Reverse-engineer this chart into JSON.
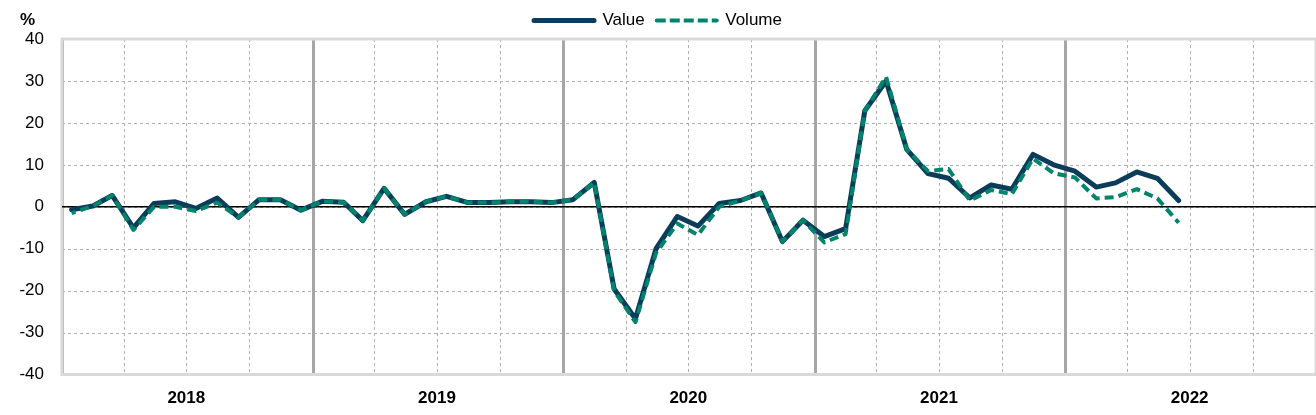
{
  "chart_data": {
    "type": "line",
    "ylabel": "%",
    "x": [
      "2018-01-15",
      "2018-02-15",
      "2018-03-15",
      "2018-04-15",
      "2018-05-15",
      "2018-06-15",
      "2018-07-15",
      "2018-08-15",
      "2018-09-15",
      "2018-10-15",
      "2018-11-15",
      "2018-12-15",
      "2019-01-15",
      "2019-02-15",
      "2019-03-15",
      "2019-04-15",
      "2019-05-15",
      "2019-06-15",
      "2019-07-15",
      "2019-08-15",
      "2019-09-15",
      "2019-10-15",
      "2019-11-15",
      "2019-12-15",
      "2020-01-15",
      "2020-02-15",
      "2020-03-15",
      "2020-04-15",
      "2020-05-15",
      "2020-06-15",
      "2020-07-15",
      "2020-08-15",
      "2020-09-15",
      "2020-10-15",
      "2020-11-15",
      "2020-12-15",
      "2021-01-15",
      "2021-02-15",
      "2021-03-15",
      "2021-04-15",
      "2021-05-15",
      "2021-06-15",
      "2021-07-15",
      "2021-08-15",
      "2021-09-15",
      "2021-10-15",
      "2021-11-15",
      "2021-12-15",
      "2022-01-15",
      "2022-02-15",
      "2022-03-15",
      "2022-04-15",
      "2022-05-15",
      "2022-06-15"
    ],
    "series": [
      {
        "name": "Value",
        "color": "#0b3d5b",
        "line_style": "solid",
        "values": [
          -0.7,
          0.2,
          2.7,
          -5,
          0.8,
          1.2,
          -0.4,
          2.1,
          -2.5,
          1.7,
          1.7,
          -0.8,
          1.3,
          1.1,
          -3.3,
          4.4,
          -1.8,
          1.2,
          2.5,
          1,
          1,
          1.2,
          1.2,
          1,
          1.7,
          5.8,
          -19.6,
          -26.7,
          -10,
          -2.3,
          -4.6,
          0.8,
          1.5,
          3.3,
          -8.3,
          -3.2,
          -7.1,
          -5.2,
          22.9,
          30,
          13.7,
          7.9,
          6.8,
          2.1,
          5.2,
          4.2,
          12.5,
          10,
          8.5,
          4.7,
          5.7,
          8.3,
          6.8,
          1.5
        ]
      },
      {
        "name": "Volume",
        "color": "#00846b",
        "line_style": "dashed",
        "values": [
          -1.5,
          0.2,
          2.7,
          -5.5,
          0,
          0,
          -1,
          1,
          -2.5,
          1.7,
          1.7,
          -0.8,
          1.3,
          1.1,
          -3.3,
          4.4,
          -1.8,
          1.2,
          2.5,
          1,
          1,
          1.2,
          1.2,
          1,
          1.7,
          5.8,
          -20,
          -27.5,
          -11,
          -4,
          -6.7,
          0,
          1.5,
          3.3,
          -8.3,
          -3.2,
          -8.5,
          -6.5,
          22.9,
          31,
          13.7,
          8.5,
          9,
          1.5,
          4,
          3,
          11.5,
          8,
          7,
          2,
          2.3,
          4.2,
          2,
          -3.8
        ]
      }
    ],
    "xlim": [
      "2018-01",
      "2023-01"
    ],
    "xticks": [
      {
        "value": "2018-01",
        "label": null
      },
      {
        "value": "2018-04",
        "label": null
      },
      {
        "value": "2018-07",
        "label": "2018"
      },
      {
        "value": "2018-10",
        "label": null
      },
      {
        "value": "2019-01",
        "label": null
      },
      {
        "value": "2019-04",
        "label": null
      },
      {
        "value": "2019-07",
        "label": "2019"
      },
      {
        "value": "2019-10",
        "label": null
      },
      {
        "value": "2020-01",
        "label": null
      },
      {
        "value": "2020-04",
        "label": null
      },
      {
        "value": "2020-07",
        "label": "2020"
      },
      {
        "value": "2020-10",
        "label": null
      },
      {
        "value": "2021-01",
        "label": null
      },
      {
        "value": "2021-04",
        "label": null
      },
      {
        "value": "2021-07",
        "label": "2021"
      },
      {
        "value": "2021-10",
        "label": null
      },
      {
        "value": "2022-01",
        "label": null
      },
      {
        "value": "2022-04",
        "label": null
      },
      {
        "value": "2022-07",
        "label": "2022"
      },
      {
        "value": "2022-10",
        "label": null
      }
    ],
    "ylim": [
      -40,
      40
    ],
    "yticks": [
      -40,
      -30,
      -20,
      -10,
      0,
      10,
      20,
      30,
      40
    ],
    "ref_lines": [
      {
        "axis": "y",
        "value": 0,
        "color": "#000000"
      }
    ],
    "grid": true,
    "legend": "top",
    "marker": "none"
  }
}
